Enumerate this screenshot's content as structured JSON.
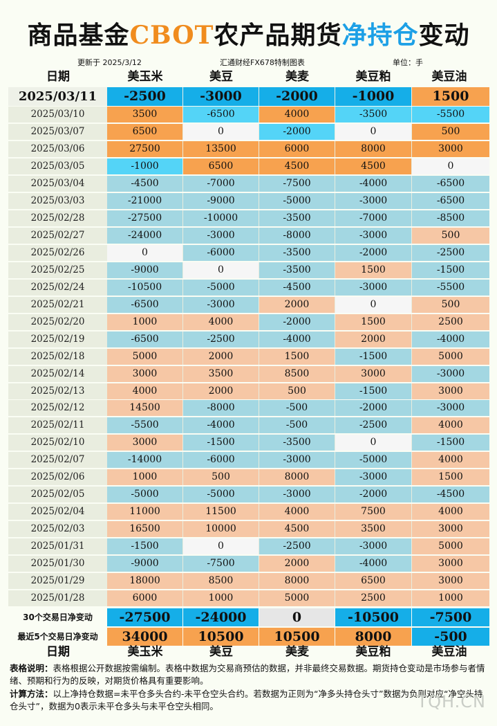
{
  "title": {
    "p1": "商品基金",
    "p2": "CBOT",
    "p3": "农产品",
    "p4": "期货",
    "p5": "净持仓",
    "p6": "变动"
  },
  "meta": {
    "updated": "更新于 2025/3/12",
    "source": "汇通财经FX678特制图表",
    "unit": "单位：手"
  },
  "colors": {
    "orange": "#f7a24f",
    "blue_strong": "#15aee8",
    "cyan": "#54d4f7",
    "white": "#f6f6f6",
    "light_blue": "#a3d7e2",
    "peach": "#f6c7a5",
    "gray": "#e6e6e6"
  },
  "chart_data": {
    "type": "table",
    "columns": [
      "日期",
      "美玉米",
      "美豆",
      "美麦",
      "美豆粕",
      "美豆油"
    ],
    "rows": [
      {
        "date": "2025/03/11",
        "values": [
          -2500,
          -3000,
          -2000,
          -1000,
          1500
        ]
      },
      {
        "date": "2025/03/10",
        "values": [
          3500,
          -6500,
          4000,
          -3500,
          -5500
        ]
      },
      {
        "date": "2025/03/07",
        "values": [
          6500,
          0,
          -2000,
          0,
          500
        ]
      },
      {
        "date": "2025/03/06",
        "values": [
          27500,
          13500,
          6000,
          8000,
          3000
        ]
      },
      {
        "date": "2025/03/05",
        "values": [
          -1000,
          6500,
          4500,
          4500,
          0
        ]
      },
      {
        "date": "2025/03/04",
        "values": [
          -4500,
          -7000,
          -7500,
          -4000,
          -6500
        ]
      },
      {
        "date": "2025/03/03",
        "values": [
          -21000,
          -9000,
          -5000,
          -3000,
          -6500
        ]
      },
      {
        "date": "2025/02/28",
        "values": [
          -27500,
          -10000,
          -3500,
          -7000,
          -8500
        ]
      },
      {
        "date": "2025/02/27",
        "values": [
          -24000,
          -3000,
          -8000,
          -3000,
          500
        ]
      },
      {
        "date": "2025/02/26",
        "values": [
          0,
          -6000,
          -3500,
          -2000,
          -2500
        ]
      },
      {
        "date": "2025/02/25",
        "values": [
          -9000,
          0,
          -3500,
          1500,
          -1500
        ]
      },
      {
        "date": "2025/02/24",
        "values": [
          -10500,
          -5000,
          -4500,
          -3000,
          -5500
        ]
      },
      {
        "date": "2025/02/21",
        "values": [
          -6500,
          -3000,
          2000,
          0,
          500
        ]
      },
      {
        "date": "2025/02/20",
        "values": [
          1000,
          4000,
          -2000,
          1500,
          2500
        ]
      },
      {
        "date": "2025/02/19",
        "values": [
          -6500,
          -2500,
          -4000,
          2000,
          -4000
        ]
      },
      {
        "date": "2025/02/18",
        "values": [
          5000,
          2000,
          1500,
          -1500,
          5000
        ]
      },
      {
        "date": "2025/02/14",
        "values": [
          3000,
          3500,
          8500,
          3000,
          -3000
        ]
      },
      {
        "date": "2025/02/13",
        "values": [
          4000,
          2000,
          500,
          -1500,
          3000
        ]
      },
      {
        "date": "2025/02/12",
        "values": [
          14500,
          -8000,
          -500,
          -2000,
          -3000
        ]
      },
      {
        "date": "2025/02/11",
        "values": [
          -5500,
          -4000,
          -500,
          -2500,
          4000
        ]
      },
      {
        "date": "2025/02/10",
        "values": [
          3000,
          -1500,
          -3500,
          0,
          -1500
        ]
      },
      {
        "date": "2025/02/07",
        "values": [
          -14000,
          -6000,
          -3000,
          -5000,
          4000
        ]
      },
      {
        "date": "2025/02/06",
        "values": [
          1000,
          500,
          8000,
          -3000,
          1500
        ]
      },
      {
        "date": "2025/02/05",
        "values": [
          -5000,
          -5000,
          -3000,
          -2000,
          -4500
        ]
      },
      {
        "date": "2025/02/04",
        "values": [
          11000,
          11500,
          4000,
          7500,
          4000
        ]
      },
      {
        "date": "2025/02/03",
        "values": [
          16500,
          10000,
          4500,
          3500,
          3000
        ]
      },
      {
        "date": "2025/01/31",
        "values": [
          -1500,
          0,
          -2500,
          -3000,
          5000
        ]
      },
      {
        "date": "2025/01/30",
        "values": [
          -9000,
          -7500,
          2000,
          -4000,
          3000
        ]
      },
      {
        "date": "2025/01/29",
        "values": [
          18000,
          8500,
          8000,
          6500,
          3000
        ]
      },
      {
        "date": "2025/01/28",
        "values": [
          6000,
          1000,
          5000,
          2500,
          1000
        ]
      }
    ],
    "summary": [
      {
        "label": "30个交易日净变动",
        "values": [
          -27500,
          -24000,
          0,
          -10500,
          -7500
        ]
      },
      {
        "label": "最近5个交易日净变动",
        "values": [
          34000,
          10500,
          10500,
          8000,
          -500
        ]
      }
    ]
  },
  "notes": {
    "table_label": "表格说明：",
    "table_text": "表格根据公开数据按需编制。表格中数据为交易商预估的数据，并非最终交易数据。期货持仓变动是市场参与者情绪、预期和行为的反映，对期货价格具有重要影响。",
    "calc_label": "计算方法：",
    "calc_text": "以上净持仓数据=未平仓多头合约-未平仓空头合约。若数据为正则为“净多头持仓头寸”数据为负则对应“净空头持仓头寸”，数据为0表示未平仓多头与未平仓空头相同。"
  },
  "watermark": "TQH.CN"
}
